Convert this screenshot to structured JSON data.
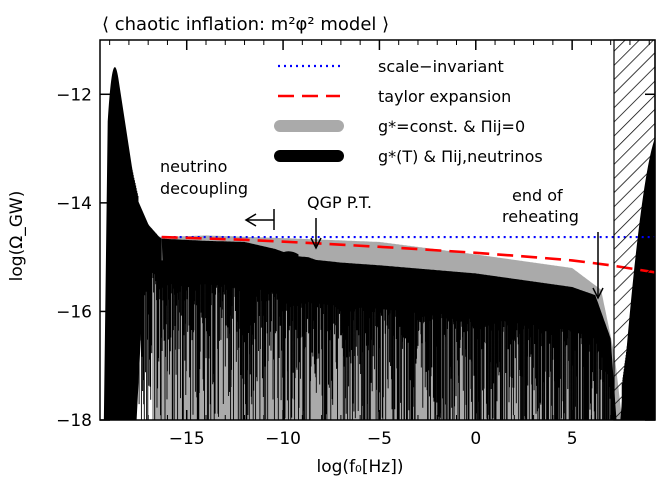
{
  "chart_data": {
    "type": "line",
    "title": "⟨ chaotic inflation: m²φ² model ⟩",
    "xlabel": "log(f₀[Hz])",
    "ylabel": "log(Ω_GW)",
    "xlim": [
      -19.5,
      9.3
    ],
    "ylim": [
      -18,
      -11
    ],
    "xticks": [
      -15,
      -10,
      -5,
      0,
      5
    ],
    "yticks": [
      -12,
      -14,
      -16,
      -18
    ],
    "xtick_labels": [
      "−15",
      "−10",
      "−5",
      "0",
      "5"
    ],
    "ytick_labels": [
      "−12",
      "−14",
      "−16",
      "−18"
    ],
    "legend_position": "top-right",
    "series": [
      {
        "name": "scale−invariant",
        "style": "dotted",
        "color": "#0000ff",
        "x": [
          -16.3,
          9.3
        ],
        "y": [
          -14.63,
          -14.63
        ]
      },
      {
        "name": "taylor expansion",
        "style": "dashed",
        "color": "#ff0000",
        "x": [
          -16.3,
          -12,
          -8,
          -4,
          0,
          3,
          5,
          7,
          9.3
        ],
        "y": [
          -14.63,
          -14.68,
          -14.75,
          -14.83,
          -14.92,
          -15.0,
          -15.06,
          -15.15,
          -15.28
        ]
      },
      {
        "name": "g*=const. & Πij=0",
        "style": "band",
        "color": "#aaaaaa",
        "x": [
          -16.8,
          -16.3,
          -14,
          -10,
          -8.5,
          -5,
          0,
          3,
          5,
          6.5,
          7.2,
          7.6
        ],
        "y": [
          -14.6,
          -14.63,
          -14.6,
          -14.65,
          -14.67,
          -14.72,
          -14.95,
          -15.1,
          -15.2,
          -15.6,
          -16.8,
          -18
        ]
      },
      {
        "name": "g*(T) & Πij,neutrinos",
        "style": "band",
        "color": "#000000",
        "x": [
          -16.3,
          -14,
          -12,
          -10.4,
          -9.4,
          -8.7,
          -8.3,
          -7,
          -5,
          0,
          3,
          5,
          6.2,
          7.0,
          7.3
        ],
        "y": [
          -14.66,
          -14.7,
          -14.72,
          -14.85,
          -14.98,
          -15.0,
          -15.05,
          -15.1,
          -15.15,
          -15.3,
          -15.45,
          -15.55,
          -15.7,
          -16.5,
          -18
        ]
      }
    ],
    "annotations": [
      {
        "text": "neutrino",
        "x": -17.3,
        "y": -13.4
      },
      {
        "text": "decoupling",
        "x": -17.3,
        "y": -13.8
      },
      {
        "text": "QGP P.T.",
        "x": -8.4,
        "y": -13.9
      },
      {
        "text": "end of",
        "x": 5.8,
        "y": -13.8
      },
      {
        "text": "reheating",
        "x": 5.0,
        "y": -14.2
      }
    ]
  }
}
